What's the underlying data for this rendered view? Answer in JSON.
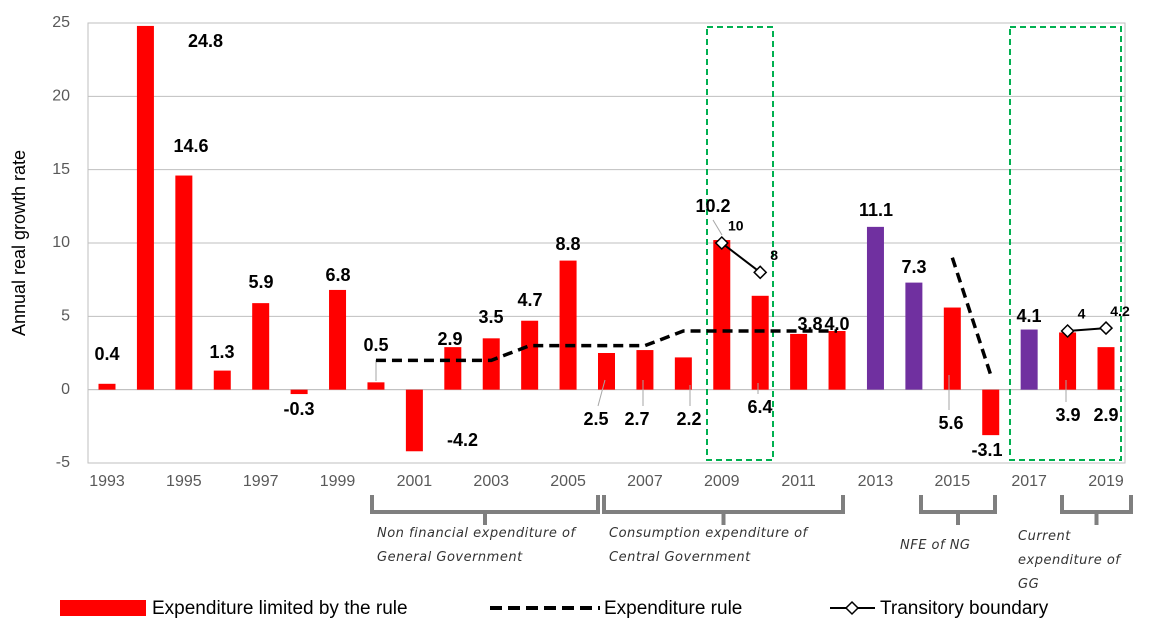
{
  "chart_data": {
    "type": "bar",
    "y_axis_label": "Annual real growth rate",
    "categories": [
      "1993",
      null,
      "1995",
      null,
      "1997",
      null,
      "1999",
      null,
      "2001",
      null,
      "2003",
      null,
      "2005",
      null,
      "2007",
      null,
      "2009",
      null,
      "2011",
      null,
      "2013",
      null,
      "2015",
      null,
      "2017",
      null,
      "2019"
    ],
    "ylim": [
      -5,
      25
    ],
    "yticks": [
      -5,
      0,
      5,
      10,
      15,
      20,
      25
    ],
    "grid": true,
    "series": [
      {
        "name": "Expenditure limited by the rule",
        "type": "bar",
        "color": "#ff0000",
        "colors": [
          "#ff0000",
          "#ff0000",
          "#ff0000",
          "#ff0000",
          "#ff0000",
          "#ff0000",
          "#ff0000",
          "#ff0000",
          "#ff0000",
          "#ff0000",
          "#ff0000",
          "#ff0000",
          "#ff0000",
          "#ff0000",
          "#ff0000",
          "#ff0000",
          "#ff0000",
          "#ff0000",
          "#ff0000",
          "#ff0000",
          "#7030a0",
          "#7030a0",
          "#ff0000",
          "#ff0000",
          "#7030a0",
          "#ff0000",
          "#ff0000"
        ],
        "values": [
          0.4,
          24.8,
          14.6,
          1.3,
          5.9,
          -0.3,
          6.8,
          0.5,
          -4.2,
          2.9,
          3.5,
          4.7,
          8.8,
          2.5,
          2.7,
          2.2,
          10.2,
          6.4,
          3.8,
          4.0,
          11.1,
          7.3,
          5.6,
          -3.1,
          4.1,
          3.9,
          2.9
        ],
        "value_labels": [
          "0.4",
          "24.8",
          "14.6",
          "1.3",
          "5.9",
          "-0.3",
          "6.8",
          "0.5",
          "-4.2",
          "2.9",
          "3.5",
          "4.7",
          "8.8",
          "2.5",
          "2.7",
          "2.2",
          "10.2",
          "6.4",
          "3.8",
          "4.0",
          "11.1",
          "7.3",
          "5.6",
          "-3.1",
          "4.1",
          "3.9",
          "2.9"
        ]
      },
      {
        "name": "Expenditure rule",
        "type": "line",
        "color": "#000000",
        "dashed": true,
        "values": [
          null,
          null,
          null,
          null,
          null,
          null,
          null,
          2,
          2,
          2,
          2,
          3,
          3,
          3,
          3,
          4,
          4,
          4,
          4,
          4,
          null,
          null,
          9,
          1,
          null,
          null,
          null
        ]
      },
      {
        "name": "Transitory boundary",
        "type": "line",
        "color": "#000000",
        "marker": "diamond",
        "point_labels": true,
        "values": [
          null,
          null,
          null,
          null,
          null,
          null,
          null,
          null,
          null,
          null,
          null,
          null,
          null,
          null,
          null,
          null,
          10,
          8,
          null,
          null,
          null,
          null,
          null,
          null,
          null,
          4,
          4.2
        ]
      }
    ],
    "annotations": [
      "Non financial expenditure of General Government",
      "Consumption expenditure of Central Government",
      "NFE of  NG",
      "Current expenditure of GG"
    ]
  }
}
